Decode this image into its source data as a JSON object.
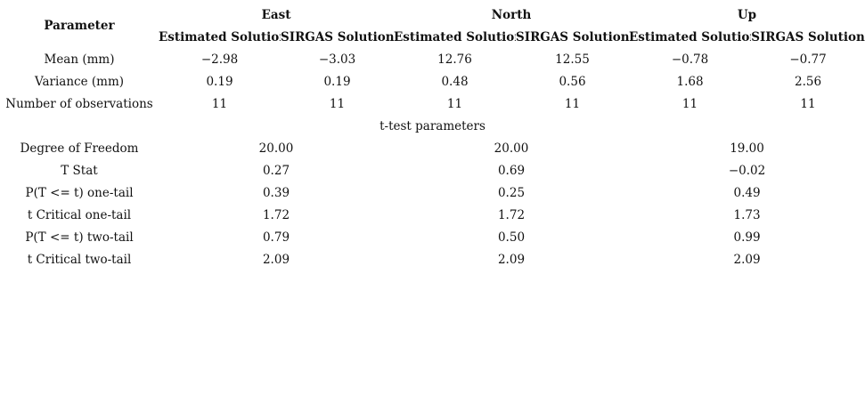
{
  "header": {
    "parameter": "Parameter",
    "groups": [
      "East",
      "North",
      "Up"
    ],
    "subcolumns": [
      "Estimated Solution",
      "SIRGAS Solution",
      "Estimated Solution",
      "SIRGAS Solution",
      "Estimated Solution",
      "SIRGAS Solution"
    ]
  },
  "rows": [
    {
      "label": "Mean (mm)",
      "values": [
        "−2.98",
        "−3.03",
        "12.76",
        "12.55",
        "−0.78",
        "−0.77"
      ]
    },
    {
      "label": "Variance (mm)",
      "values": [
        "0.19",
        "0.19",
        "0.48",
        "0.56",
        "1.68",
        "2.56"
      ]
    },
    {
      "label": "Number of observations",
      "values": [
        "11",
        "11",
        "11",
        "11",
        "11",
        "11"
      ]
    }
  ],
  "section_title": "t-test parameters",
  "ttest_rows": [
    {
      "label": "Degree of Freedom",
      "values": [
        "20.00",
        "20.00",
        "19.00"
      ]
    },
    {
      "label": "T Stat",
      "values": [
        "0.27",
        "0.69",
        "−0.02"
      ]
    },
    {
      "label": "P(T <= t) one-tail",
      "values": [
        "0.39",
        "0.25",
        "0.49"
      ]
    },
    {
      "label": "t Critical one-tail",
      "values": [
        "1.72",
        "1.72",
        "1.73"
      ]
    },
    {
      "label": "P(T <= t) two-tail",
      "values": [
        "0.79",
        "0.50",
        "0.99"
      ]
    },
    {
      "label": "t Critical two-tail",
      "values": [
        "2.09",
        "2.09",
        "2.09"
      ]
    }
  ]
}
